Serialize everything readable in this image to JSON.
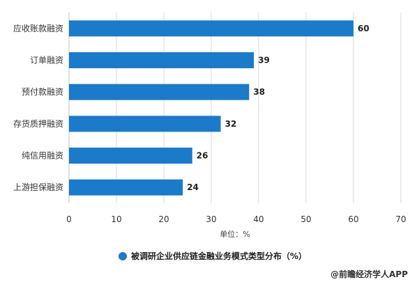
{
  "chart_data": {
    "type": "bar",
    "orientation": "horizontal",
    "categories": [
      "应收账款融资",
      "订单融资",
      "预付款融资",
      "存货质押融资",
      "纯信用融资",
      "上游担保融资"
    ],
    "series": [
      {
        "name": "被调研企业供应链金融业务模式类型分布（%）",
        "values": [
          60,
          39,
          38,
          32,
          26,
          24
        ]
      }
    ],
    "xlabel": "单位：%",
    "xlim": [
      0,
      70
    ],
    "xticks": [
      0,
      10,
      20,
      30,
      40,
      50,
      60,
      70
    ],
    "grid": true,
    "legend_position": "bottom-center",
    "bar_color": "#1b7ac9"
  },
  "watermark": {
    "text": "@前瞻经济学人APP"
  }
}
